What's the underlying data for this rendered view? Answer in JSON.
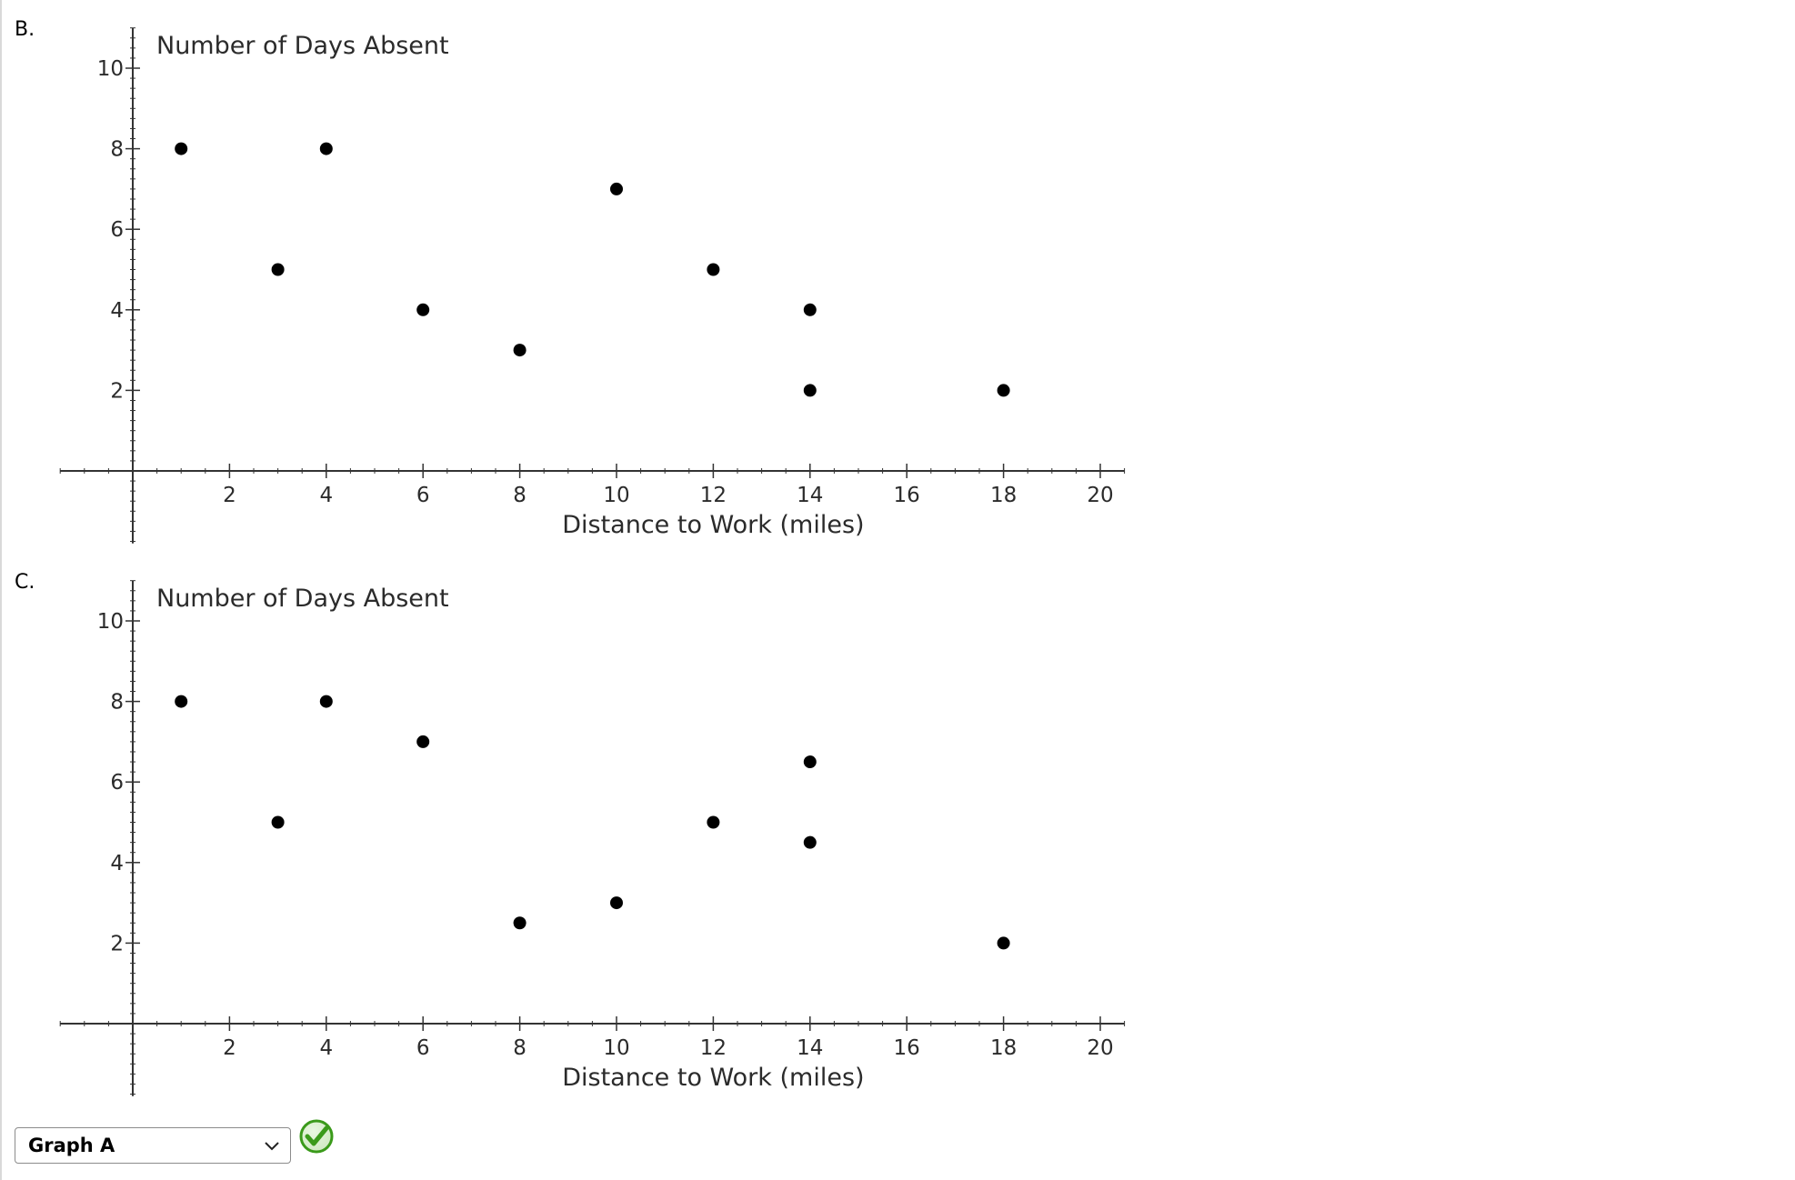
{
  "options": [
    {
      "letter": "B.",
      "chart_index": 0
    },
    {
      "letter": "C.",
      "chart_index": 1
    }
  ],
  "answer": {
    "selected": "Graph A",
    "status": "correct",
    "status_icon": "check-icon",
    "accent_color": "#3a9a1a"
  },
  "chart_data": [
    {
      "type": "scatter",
      "title": "",
      "xlabel": "Distance to Work (miles)",
      "ylabel": "Number of Days Absent",
      "xlim": [
        -1.5,
        20.5
      ],
      "ylim": [
        -1.8,
        11
      ],
      "x_ticks": [
        2,
        4,
        6,
        8,
        10,
        12,
        14,
        16,
        18,
        20
      ],
      "y_ticks": [
        2,
        4,
        6,
        8,
        10
      ],
      "grid": false,
      "marker_color": "#000000",
      "points": [
        {
          "x": 1,
          "y": 8
        },
        {
          "x": 3,
          "y": 5
        },
        {
          "x": 4,
          "y": 8
        },
        {
          "x": 6,
          "y": 4
        },
        {
          "x": 8,
          "y": 3
        },
        {
          "x": 10,
          "y": 7
        },
        {
          "x": 12,
          "y": 5
        },
        {
          "x": 14,
          "y": 4
        },
        {
          "x": 14,
          "y": 2
        },
        {
          "x": 18,
          "y": 2
        }
      ]
    },
    {
      "type": "scatter",
      "title": "",
      "xlabel": "Distance to Work (miles)",
      "ylabel": "Number of Days Absent",
      "xlim": [
        -1.5,
        20.5
      ],
      "ylim": [
        -1.8,
        11
      ],
      "x_ticks": [
        2,
        4,
        6,
        8,
        10,
        12,
        14,
        16,
        18,
        20
      ],
      "y_ticks": [
        2,
        4,
        6,
        8,
        10
      ],
      "grid": false,
      "marker_color": "#000000",
      "points": [
        {
          "x": 1,
          "y": 8
        },
        {
          "x": 3,
          "y": 5
        },
        {
          "x": 4,
          "y": 8
        },
        {
          "x": 6,
          "y": 7
        },
        {
          "x": 8,
          "y": 2.5
        },
        {
          "x": 10,
          "y": 3
        },
        {
          "x": 12,
          "y": 5
        },
        {
          "x": 14,
          "y": 6.5
        },
        {
          "x": 14,
          "y": 4.5
        },
        {
          "x": 18,
          "y": 2
        }
      ]
    }
  ]
}
